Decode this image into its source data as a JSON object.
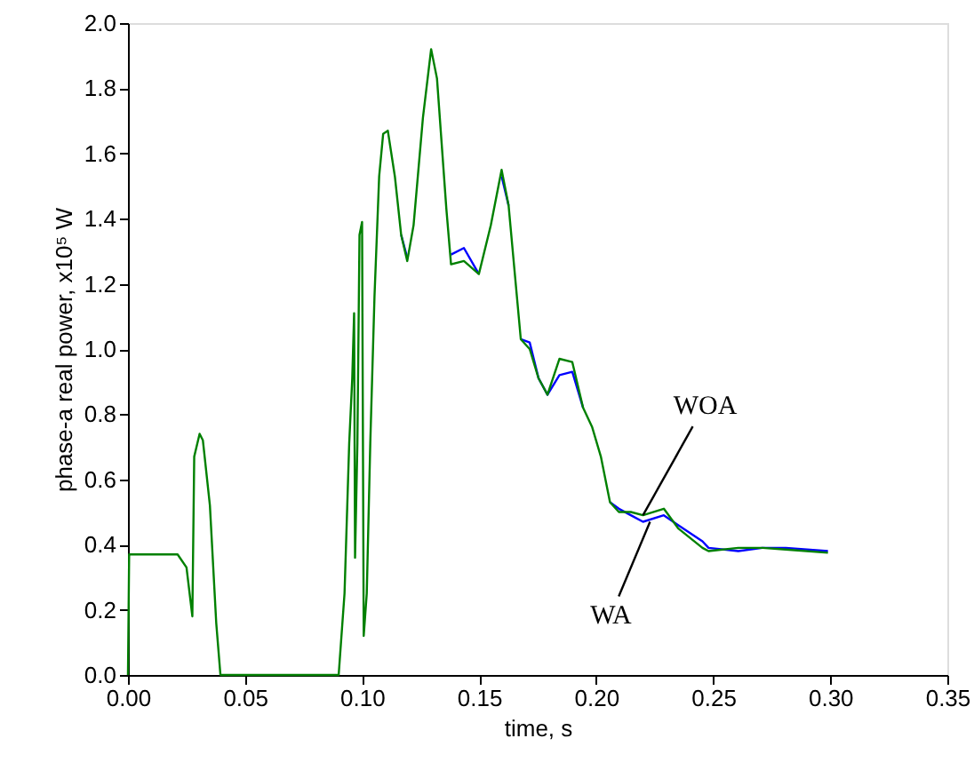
{
  "chart_data": {
    "type": "line",
    "xlabel": "time, s",
    "ylabel": "phase-a real power, x10⁵ W",
    "xlim": [
      0,
      0.35
    ],
    "ylim": [
      0,
      2.0
    ],
    "xticks": [
      {
        "value": 0,
        "label": "0.00"
      },
      0.05,
      {
        "value": 0.1,
        "label": "0.10"
      },
      0.15,
      {
        "value": 0.2,
        "label": "0.20"
      },
      0.25,
      {
        "value": 0.3,
        "label": "0.30"
      },
      0.35
    ],
    "yticks": [
      {
        "value": 0,
        "label": "0.0"
      },
      0.2,
      0.4,
      0.6,
      0.8,
      {
        "value": 1,
        "label": "1.0"
      },
      1.2,
      1.4,
      1.6,
      1.8,
      {
        "value": 2,
        "label": "2.0"
      }
    ],
    "grid": false,
    "marker": "none",
    "line_style": "solid",
    "x": [
      0,
      0.0005,
      0.0212,
      0.025,
      0.0275,
      0.0283,
      0.0306,
      0.032,
      0.035,
      0.0377,
      0.0395,
      0.09,
      0.0925,
      0.0945,
      0.0958,
      0.0966,
      0.097,
      0.098,
      0.0989,
      0.1,
      0.1007,
      0.102,
      0.1035,
      0.1053,
      0.1073,
      0.109,
      0.111,
      0.114,
      0.1167,
      0.1193,
      0.122,
      0.126,
      0.1295,
      0.132,
      0.136,
      0.138,
      0.1435,
      0.1499,
      0.155,
      0.1596,
      0.1626,
      0.165,
      0.1678,
      0.1716,
      0.1754,
      0.1792,
      0.1843,
      0.1898,
      0.1944,
      0.1983,
      0.202,
      0.2059,
      0.2097,
      0.2148,
      0.22,
      0.2289,
      0.235,
      0.2454,
      0.248,
      0.2607,
      0.271,
      0.281,
      0.299
    ],
    "series": [
      {
        "color": "#0000ff",
        "values": [
          null,
          null,
          null,
          null,
          null,
          null,
          null,
          null,
          null,
          null,
          null,
          null,
          null,
          null,
          null,
          null,
          null,
          null,
          null,
          null,
          null,
          null,
          null,
          null,
          null,
          null,
          null,
          null,
          1.35,
          1.28,
          null,
          null,
          null,
          null,
          null,
          1.29,
          1.31,
          1.23,
          null,
          1.53,
          1.44,
          null,
          1.03,
          1.02,
          0.91,
          0.86,
          0.92,
          0.93,
          0.82,
          null,
          null,
          0.53,
          0.51,
          0.49,
          0.47,
          0.49,
          0.46,
          0.41,
          0.39,
          0.38,
          0.39,
          0.39,
          0.38
        ]
      },
      {
        "color": "#008000",
        "values": [
          0,
          0.37,
          0.37,
          0.33,
          0.18,
          0.67,
          0.74,
          0.72,
          0.52,
          0.16,
          0,
          0,
          0.25,
          0.71,
          0.91,
          1.11,
          0.36,
          0.71,
          1.35,
          1.39,
          0.12,
          0.25,
          0.71,
          1.16,
          1.53,
          1.66,
          1.67,
          1.53,
          1.35,
          1.27,
          1.38,
          1.71,
          1.92,
          1.83,
          1.43,
          1.26,
          1.27,
          1.23,
          1.38,
          1.55,
          1.44,
          1.25,
          1.03,
          1.0,
          0.91,
          0.86,
          0.97,
          0.96,
          0.82,
          0.76,
          0.67,
          0.53,
          0.5,
          0.5,
          0.49,
          0.51,
          0.45,
          0.39,
          0.38,
          0.39,
          0.39,
          0.385,
          0.375
        ]
      }
    ],
    "annotations": [
      {
        "text": "WOA",
        "x": 0.22,
        "y": 0.49
      },
      {
        "text": "WA",
        "x": 0.223,
        "y": 0.47
      }
    ]
  }
}
